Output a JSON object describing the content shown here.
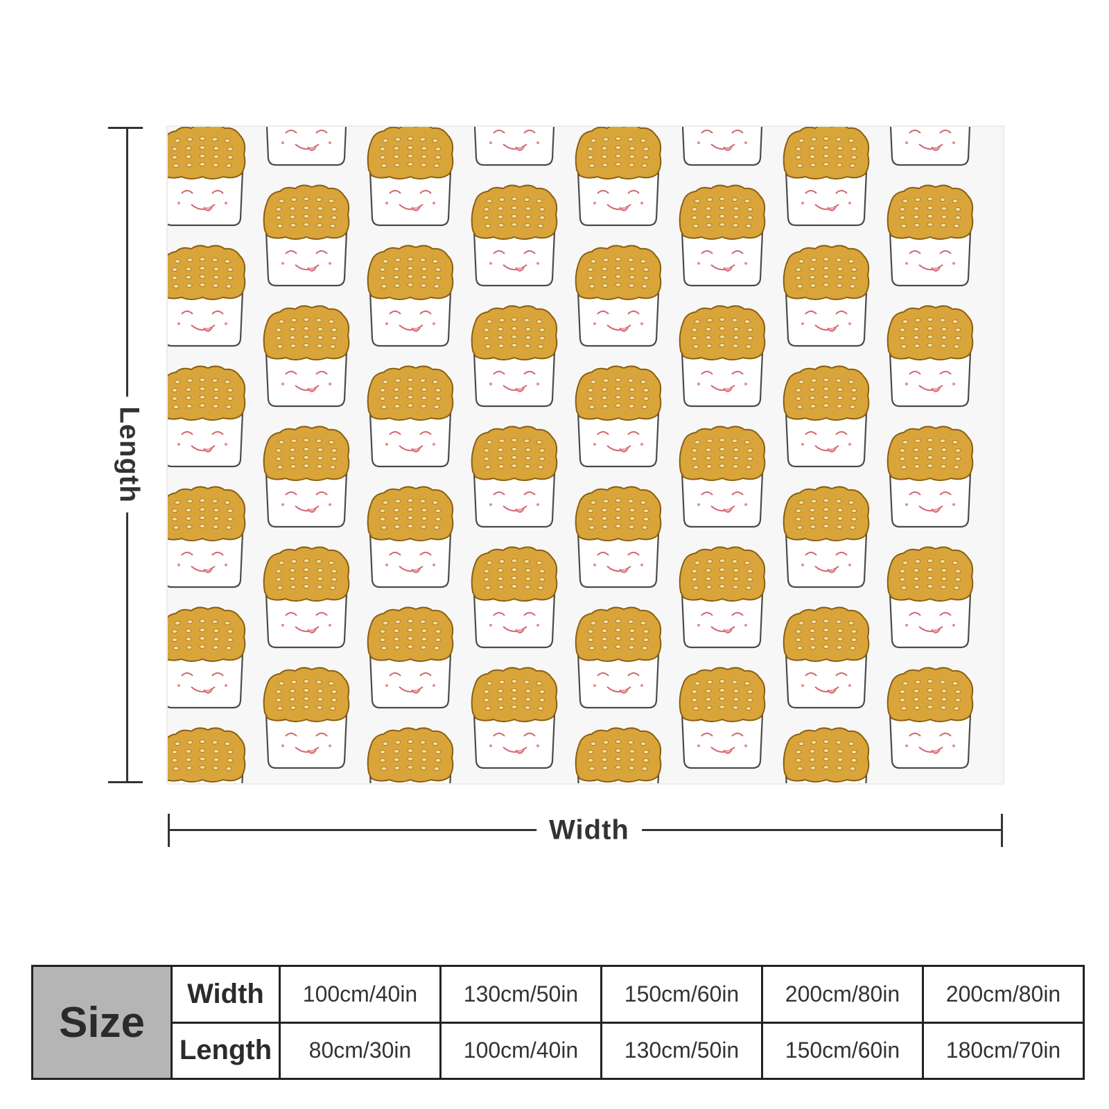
{
  "product_image": {
    "pattern_motif": "smiling waffle-fries-box icon",
    "colors": {
      "fries": "#d9a43a",
      "fries_outline": "#8a5f12",
      "fries_dots": "#f3dc9b",
      "box_outline": "#4a4a4a",
      "face_outline": "#d2626b",
      "blanket_background": "#f7f7f7"
    }
  },
  "dimension_labels": {
    "length": "Length",
    "width": "Width"
  },
  "size_table": {
    "header": "Size",
    "rows": [
      {
        "label": "Width",
        "values": [
          "100cm/40in",
          "130cm/50in",
          "150cm/60in",
          "200cm/80in",
          "200cm/80in"
        ]
      },
      {
        "label": "Length",
        "values": [
          "80cm/30in",
          "100cm/40in",
          "130cm/50in",
          "150cm/60in",
          "180cm/70in"
        ]
      }
    ]
  }
}
